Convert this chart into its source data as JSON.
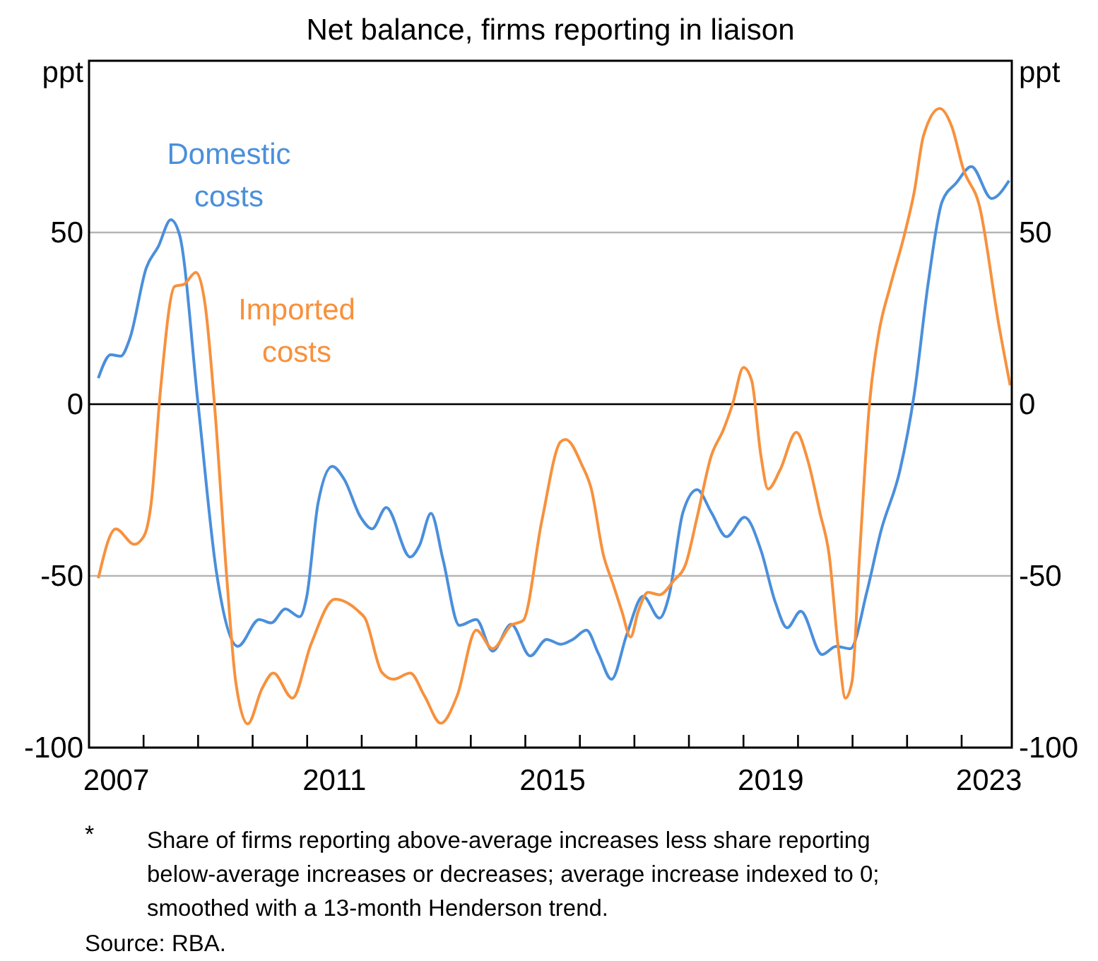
{
  "chart_data": {
    "type": "line",
    "subtitle": "Net balance, firms reporting in liaison",
    "ylabel": "ppt",
    "y2label": "ppt",
    "xlim": [
      2007,
      2023.92
    ],
    "xticks": [
      {
        "value": 2007.5,
        "label": "2007"
      },
      {
        "value": 2008,
        "label": null
      },
      {
        "value": 2009,
        "label": null
      },
      {
        "value": 2010,
        "label": null
      },
      {
        "value": 2011,
        "label": null
      },
      {
        "value": 2011.5,
        "label": "2011"
      },
      {
        "value": 2012,
        "label": null
      },
      {
        "value": 2013,
        "label": null
      },
      {
        "value": 2014,
        "label": null
      },
      {
        "value": 2015,
        "label": null
      },
      {
        "value": 2015.5,
        "label": "2015"
      },
      {
        "value": 2016,
        "label": null
      },
      {
        "value": 2017,
        "label": null
      },
      {
        "value": 2018,
        "label": null
      },
      {
        "value": 2019,
        "label": null
      },
      {
        "value": 2019.5,
        "label": "2019"
      },
      {
        "value": 2020,
        "label": null
      },
      {
        "value": 2021,
        "label": null
      },
      {
        "value": 2022,
        "label": null
      },
      {
        "value": 2023,
        "label": null
      },
      {
        "value": 2023.5,
        "label": "2023"
      }
    ],
    "ylim": [
      -100,
      100
    ],
    "yticks": [
      -100,
      -50,
      0,
      50
    ],
    "y2lim": [
      -100,
      100
    ],
    "y2ticks": [
      -100,
      -50,
      0,
      50
    ],
    "grid": "y",
    "marker": "none",
    "line_style": "solid",
    "series": [
      {
        "name": "Domestic costs",
        "color": "#4a8fdc",
        "x": [
          2007.17,
          2007.4,
          2007.58,
          2007.75,
          2008.05,
          2008.27,
          2008.5,
          2008.66,
          2009.0,
          2009.34,
          2009.73,
          2010.12,
          2010.34,
          2010.6,
          2010.86,
          2010.99,
          2011.2,
          2011.46,
          2011.68,
          2011.98,
          2012.19,
          2012.45,
          2012.89,
          2013.06,
          2013.27,
          2013.49,
          2013.79,
          2014.1,
          2014.4,
          2014.74,
          2015.09,
          2015.39,
          2015.65,
          2015.87,
          2016.12,
          2016.34,
          2016.58,
          2016.86,
          2017.16,
          2017.46,
          2017.63,
          2017.89,
          2018.15,
          2018.41,
          2018.69,
          2019.02,
          2019.32,
          2019.58,
          2019.8,
          2020.05,
          2020.44,
          2020.7,
          2020.96,
          2021.26,
          2021.52,
          2021.87,
          2022.13,
          2022.39,
          2022.64,
          2022.9,
          2023.18,
          2023.55,
          2023.87
        ],
        "values": [
          7.6,
          14.4,
          14,
          19.2,
          39.7,
          45.9,
          53.7,
          49.3,
          0,
          -49.3,
          -70.5,
          -62.7,
          -63.7,
          -59.6,
          -61.9,
          -56.2,
          -28.8,
          -18.1,
          -21.9,
          -32.9,
          -36.3,
          -30.1,
          -44.5,
          -41.1,
          -31.8,
          -45.2,
          -64.4,
          -62.7,
          -71.9,
          -64.1,
          -73.3,
          -68.5,
          -69.9,
          -68.5,
          -65.8,
          -72.6,
          -80.1,
          -67.1,
          -55.9,
          -62.3,
          -56.1,
          -31.5,
          -24.9,
          -31.5,
          -38.6,
          -32.9,
          -42.5,
          -57.5,
          -65.1,
          -60.3,
          -72.9,
          -70.5,
          -71.2,
          -54.8,
          -37,
          -19.2,
          2.8,
          35.6,
          58.9,
          64.4,
          69.2,
          59.9,
          65.1
        ]
      },
      {
        "name": "Imported costs",
        "color": "#f7913d",
        "x": [
          2007.17,
          2007.49,
          2007.83,
          2008.01,
          2008.14,
          2008.31,
          2008.57,
          2008.74,
          2008.96,
          2009.13,
          2009.3,
          2009.52,
          2009.69,
          2009.91,
          2010.17,
          2010.38,
          2010.73,
          2011.07,
          2011.51,
          2011.94,
          2012.06,
          2012.37,
          2012.58,
          2012.89,
          2013.15,
          2013.45,
          2013.75,
          2014.1,
          2014.4,
          2014.74,
          2014.96,
          2015.3,
          2015.65,
          2015.74,
          2016.04,
          2016.21,
          2016.43,
          2016.6,
          2016.77,
          2016.93,
          2017.07,
          2017.25,
          2017.46,
          2017.72,
          2017.94,
          2018.15,
          2018.41,
          2018.63,
          2018.8,
          2019.0,
          2019.15,
          2019.32,
          2019.45,
          2019.67,
          2019.97,
          2020.18,
          2020.4,
          2020.57,
          2020.74,
          2020.87,
          2020.99,
          2021.13,
          2021.31,
          2021.48,
          2021.69,
          2021.95,
          2022.13,
          2022.3,
          2022.6,
          2022.82,
          2023.03,
          2023.33,
          2023.68,
          2023.89
        ],
        "values": [
          -50.7,
          -36.3,
          -40.8,
          -38.3,
          -28.8,
          4.1,
          34.3,
          34.9,
          38.4,
          28.8,
          0,
          -49.3,
          -80.8,
          -93.1,
          -82.9,
          -78.3,
          -85.6,
          -69.9,
          -56.8,
          -60.3,
          -62.3,
          -78.1,
          -80.1,
          -78.3,
          -84.9,
          -92.9,
          -84.9,
          -65.8,
          -71.2,
          -64.4,
          -63,
          -34.2,
          -10.9,
          -10.3,
          -17.8,
          -24.7,
          -43.8,
          -52,
          -60.3,
          -67.8,
          -60.3,
          -54.8,
          -55.5,
          -51.4,
          -46.6,
          -32.9,
          -15,
          -7.5,
          0,
          10.7,
          6.9,
          -15,
          -24.7,
          -19.2,
          -8.2,
          -16.4,
          -31.5,
          -43.8,
          -71.2,
          -85.6,
          -80.8,
          -43.8,
          0,
          20.6,
          34.3,
          49.3,
          61.7,
          78.1,
          86.1,
          80.8,
          68.5,
          57.5,
          23.3,
          5.5
        ]
      }
    ],
    "annotations": [
      "* Share of firms reporting above-average increases less share reporting below-average increases or decreases; average increase indexed to 0; smoothed with a 13-month Henderson trend.",
      "Source:  RBA."
    ]
  }
}
